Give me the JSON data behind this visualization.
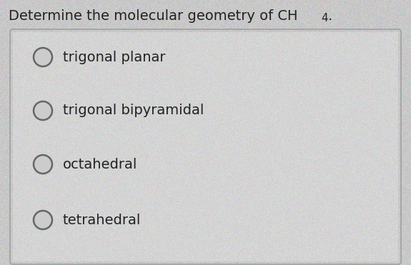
{
  "title_main": "Determine the molecular geometry of CH",
  "title_sub": "4",
  "title_period": ".",
  "options": [
    "trigonal planar",
    "trigonal bipyramidal",
    "octahedral",
    "tetrahedral"
  ],
  "bg_color": "#c8c8c8",
  "box_bg": "#d0d0d0",
  "box_edge": "#999999",
  "text_color": "#222222",
  "circle_edge": "#666666",
  "circle_face": "#cccccc",
  "title_fontsize": 14,
  "option_fontsize": 14,
  "fig_width": 5.75,
  "fig_height": 3.71
}
